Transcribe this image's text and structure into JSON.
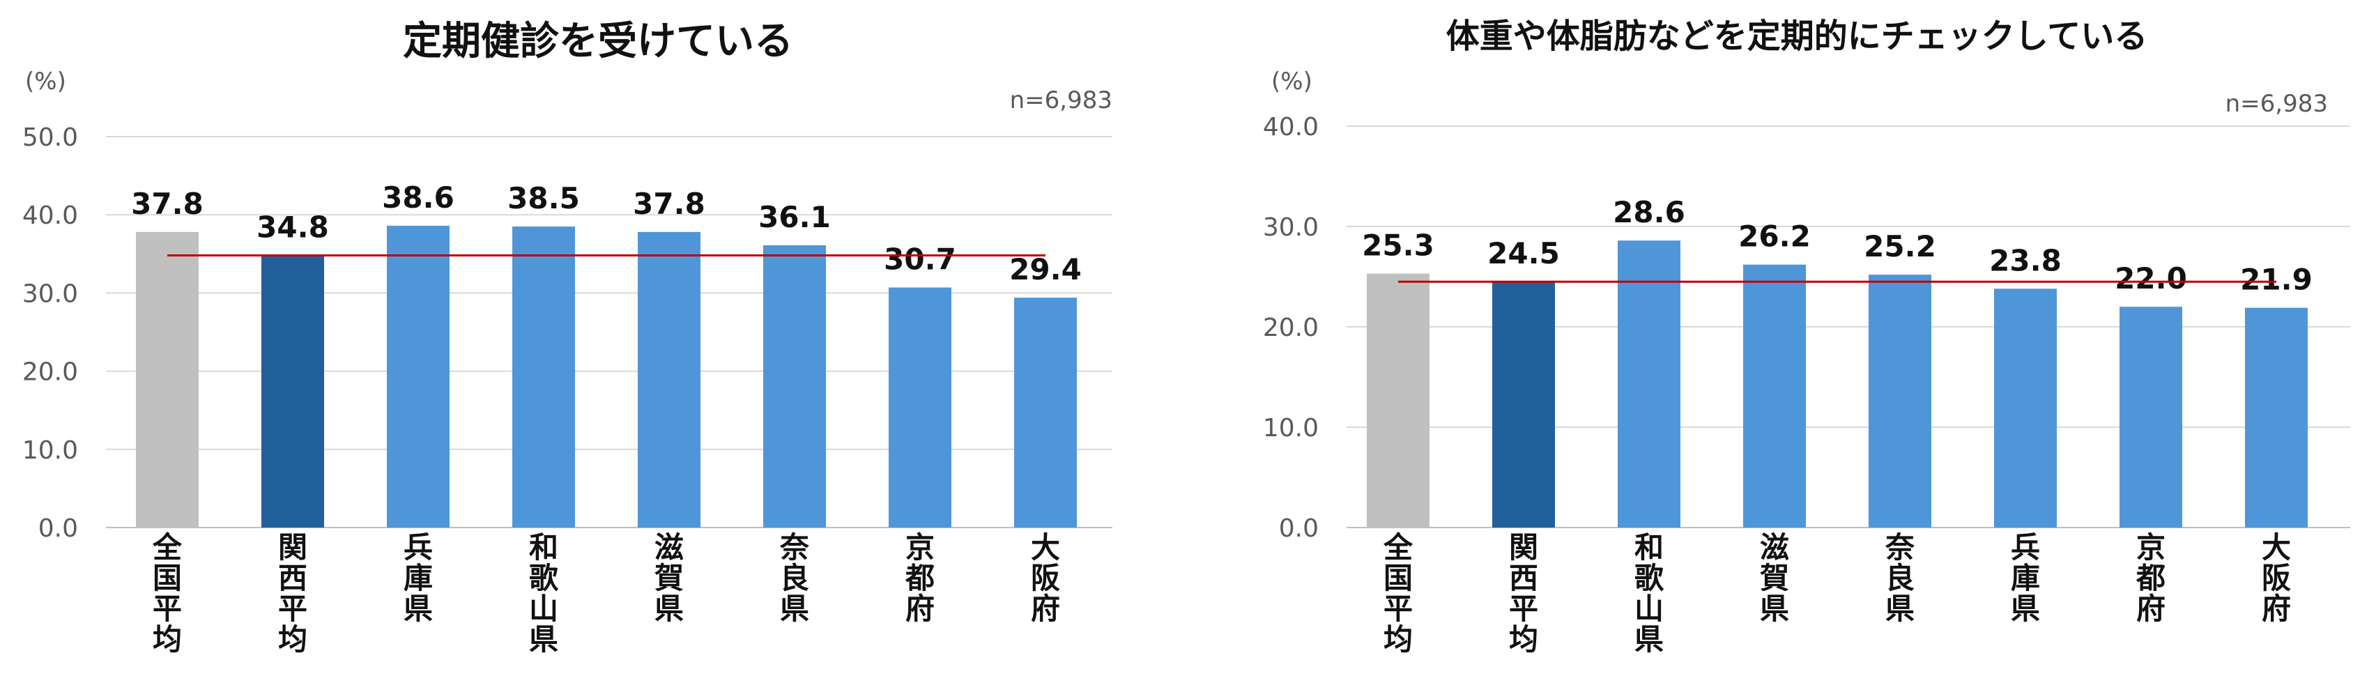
{
  "chart_data": [
    {
      "type": "bar",
      "title": "定期健診を受けている",
      "unit_label": "(%)",
      "n_label": "n=6,983",
      "categories": [
        "全国平均",
        "関西平均",
        "兵庫県",
        "和歌山県",
        "滋賀県",
        "奈良県",
        "京都府",
        "大阪府"
      ],
      "values": [
        37.8,
        34.8,
        38.6,
        38.5,
        37.8,
        36.1,
        30.7,
        29.4
      ],
      "value_labels": [
        "37.8",
        "34.8",
        "38.6",
        "38.5",
        "37.8",
        "36.1",
        "30.7",
        "29.4"
      ],
      "yticks": [
        "0.0",
        "10.0",
        "20.0",
        "30.0",
        "40.0",
        "50.0"
      ],
      "ylim": [
        0,
        50
      ],
      "reference_line": 34.8,
      "grid": true,
      "legend": "none",
      "colors": {
        "national": "#c0c0c0",
        "kansai": "#22609c",
        "prefecture": "#4f96d9",
        "reference_line": "#c00000",
        "grid": "#d9d9d9"
      }
    },
    {
      "type": "bar",
      "title": "体重や体脂肪などを定期的にチェックしている",
      "unit_label": "(%)",
      "n_label": "n=6,983",
      "categories": [
        "全国平均",
        "関西平均",
        "和歌山県",
        "滋賀県",
        "奈良県",
        "兵庫県",
        "京都府",
        "大阪府"
      ],
      "values": [
        25.3,
        24.5,
        28.6,
        26.2,
        25.2,
        23.8,
        22.0,
        21.9
      ],
      "value_labels": [
        "25.3",
        "24.5",
        "28.6",
        "26.2",
        "25.2",
        "23.8",
        "22.0",
        "21.9"
      ],
      "yticks": [
        "0.0",
        "10.0",
        "20.0",
        "30.0",
        "40.0"
      ],
      "ylim": [
        0,
        40
      ],
      "reference_line": 24.5,
      "grid": true,
      "legend": "none",
      "colors": {
        "national": "#c0c0c0",
        "kansai": "#22609c",
        "prefecture": "#4f96d9",
        "reference_line": "#c00000",
        "grid": "#d9d9d9"
      }
    }
  ]
}
